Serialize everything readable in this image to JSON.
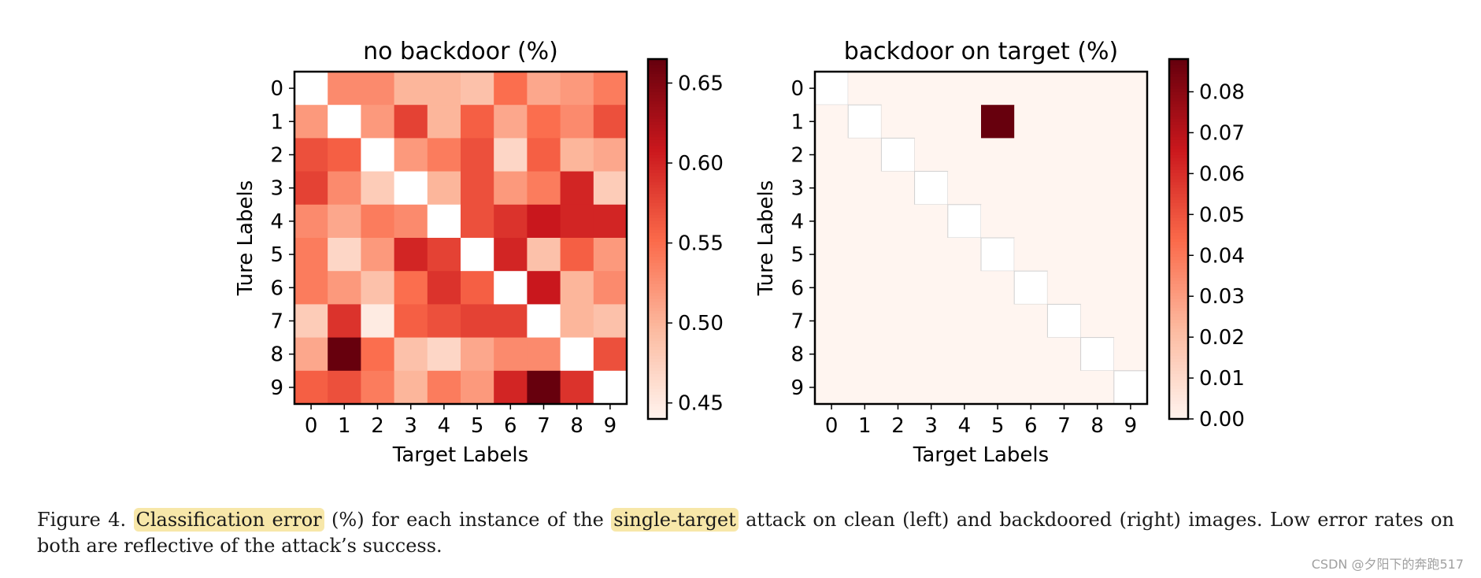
{
  "chart_data": [
    {
      "type": "heatmap",
      "title": "no backdoor (%)",
      "xlabel": "Target Labels",
      "ylabel": "Ture Labels",
      "x_ticks": [
        "0",
        "1",
        "2",
        "3",
        "4",
        "5",
        "6",
        "7",
        "8",
        "9"
      ],
      "y_ticks": [
        "0",
        "1",
        "2",
        "3",
        "4",
        "5",
        "6",
        "7",
        "8",
        "9"
      ],
      "color_range": [
        0.44,
        0.665
      ],
      "colorbar_ticks": [
        "0.45",
        "0.50",
        "0.55",
        "0.60",
        "0.65"
      ],
      "colorbar_values": [
        0.45,
        0.5,
        0.55,
        0.6,
        0.65
      ],
      "colormap": [
        "#fff5f0",
        "#fcbba1",
        "#fb6a4a",
        "#cb181d",
        "#67000d"
      ],
      "diagonal": "blank",
      "values": [
        [
          null,
          0.53,
          0.53,
          0.5,
          0.5,
          0.49,
          0.55,
          0.51,
          0.52,
          0.54
        ],
        [
          0.52,
          null,
          0.52,
          0.58,
          0.5,
          0.56,
          0.51,
          0.55,
          0.53,
          0.57
        ],
        [
          0.57,
          0.56,
          null,
          0.52,
          0.54,
          0.57,
          0.47,
          0.56,
          0.5,
          0.51
        ],
        [
          0.58,
          0.53,
          0.48,
          null,
          0.5,
          0.57,
          0.52,
          0.54,
          0.6,
          0.48
        ],
        [
          0.53,
          0.51,
          0.54,
          0.53,
          null,
          0.57,
          0.59,
          0.61,
          0.6,
          0.6
        ],
        [
          0.54,
          0.47,
          0.52,
          0.6,
          0.58,
          null,
          0.6,
          0.49,
          0.56,
          0.52
        ],
        [
          0.54,
          0.52,
          0.49,
          0.55,
          0.59,
          0.56,
          null,
          0.61,
          0.5,
          0.53
        ],
        [
          0.48,
          0.59,
          0.45,
          0.56,
          0.57,
          0.58,
          0.58,
          null,
          0.5,
          0.49
        ],
        [
          0.51,
          0.67,
          0.55,
          0.49,
          0.47,
          0.51,
          0.53,
          0.53,
          null,
          0.57
        ],
        [
          0.56,
          0.57,
          0.54,
          0.5,
          0.54,
          0.52,
          0.6,
          0.67,
          0.59,
          null
        ]
      ]
    },
    {
      "type": "heatmap",
      "title": "backdoor on target (%)",
      "xlabel": "Target Labels",
      "ylabel": "Ture Labels",
      "x_ticks": [
        "0",
        "1",
        "2",
        "3",
        "4",
        "5",
        "6",
        "7",
        "8",
        "9"
      ],
      "y_ticks": [
        "0",
        "1",
        "2",
        "3",
        "4",
        "5",
        "6",
        "7",
        "8",
        "9"
      ],
      "color_range": [
        0.0,
        0.088
      ],
      "colorbar_ticks": [
        "0.00",
        "0.01",
        "0.02",
        "0.03",
        "0.04",
        "0.05",
        "0.06",
        "0.07",
        "0.08"
      ],
      "colorbar_values": [
        0.0,
        0.01,
        0.02,
        0.03,
        0.04,
        0.05,
        0.06,
        0.07,
        0.08
      ],
      "colormap": [
        "#fff5f0",
        "#fcbba1",
        "#fb6a4a",
        "#cb181d",
        "#67000d"
      ],
      "diagonal": "blank",
      "values": [
        [
          null,
          0,
          0,
          0,
          0,
          0,
          0,
          0,
          0,
          0
        ],
        [
          0,
          null,
          0,
          0,
          0,
          0.088,
          0,
          0,
          0,
          0
        ],
        [
          0,
          0,
          null,
          0,
          0,
          0,
          0,
          0,
          0,
          0
        ],
        [
          0,
          0,
          0,
          null,
          0,
          0,
          0,
          0,
          0,
          0
        ],
        [
          0,
          0,
          0,
          0,
          null,
          0,
          0,
          0,
          0,
          0
        ],
        [
          0,
          0,
          0,
          0,
          0,
          null,
          0,
          0,
          0,
          0
        ],
        [
          0,
          0,
          0,
          0,
          0,
          0,
          null,
          0,
          0,
          0
        ],
        [
          0,
          0,
          0,
          0,
          0,
          0,
          0,
          null,
          0,
          0
        ],
        [
          0,
          0,
          0,
          0,
          0,
          0,
          0,
          0,
          null,
          0
        ],
        [
          0,
          0,
          0,
          0,
          0,
          0,
          0,
          0,
          0,
          null
        ]
      ]
    }
  ],
  "caption": {
    "prefix": "Figure 4. ",
    "highlight1": "Classification error",
    "mid1": " (%) for each instance of the ",
    "highlight2": "single-target",
    "rest": " attack on clean (left) and backdoored (right) images. Low error rates on both are reflective of the attack’s success."
  },
  "watermark": "CSDN @夕阳下的奔跑517"
}
